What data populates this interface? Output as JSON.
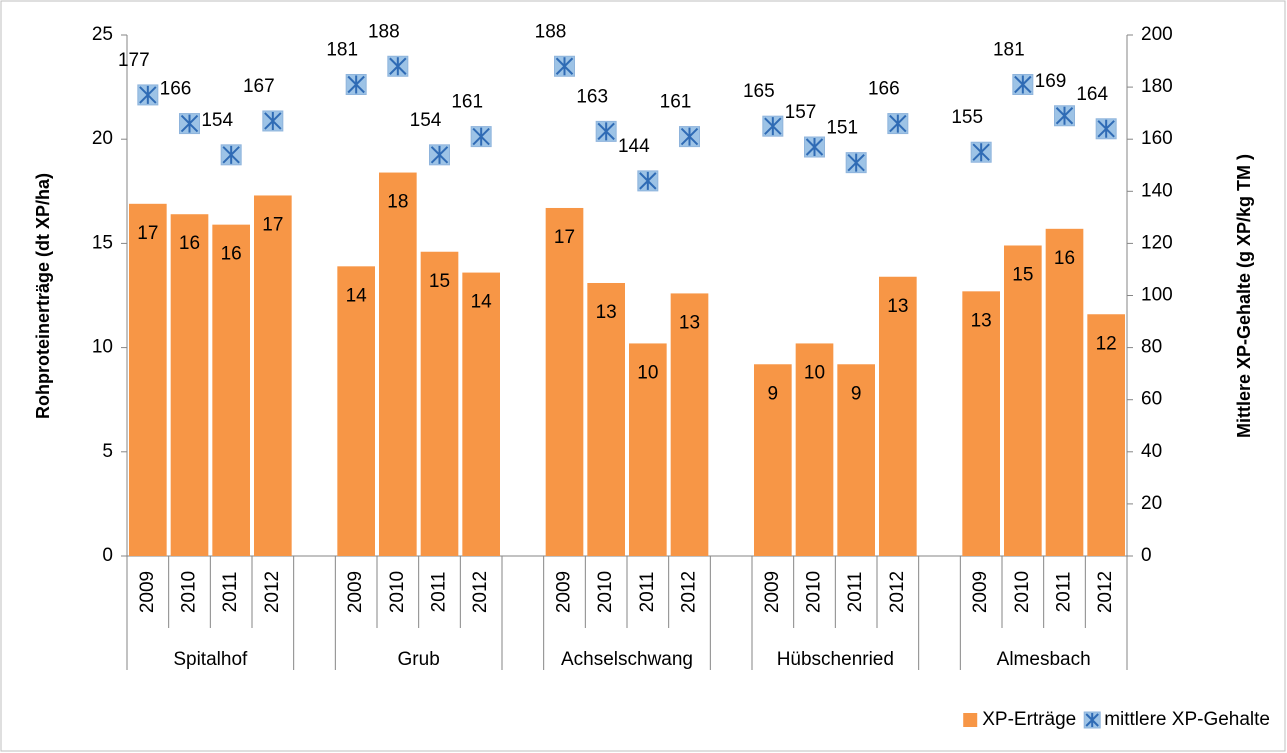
{
  "chart_data": {
    "type": "bar",
    "y_label": "Rohproteinerträge (dt XP/ha)",
    "y2_label": "Mittlere  XP-Gehalte (g XP/kg TM )",
    "groups": [
      "Spitalhof",
      "Grub",
      "Achselschwang",
      "Hübschenried",
      "Almesbach"
    ],
    "categories": [
      "2009",
      "2010",
      "2011",
      "2012",
      "2009",
      "2010",
      "2011",
      "2012",
      "2009",
      "2010",
      "2011",
      "2012",
      "2009",
      "2010",
      "2011",
      "2012",
      "2009",
      "2010",
      "2011",
      "2012"
    ],
    "series": [
      {
        "name": "XP-Erträge",
        "type": "bar",
        "color": "#f79646",
        "values": [
          16.9,
          16.4,
          15.9,
          17.3,
          13.9,
          18.4,
          14.6,
          13.6,
          16.7,
          13.1,
          10.2,
          12.6,
          9.2,
          10.2,
          9.2,
          13.4,
          12.7,
          14.9,
          15.7,
          11.6
        ],
        "value_labels": [
          "17",
          "16",
          "16",
          "17",
          "14",
          "18",
          "15",
          "14",
          "17",
          "13",
          "10",
          "13",
          "9",
          "10",
          "9",
          "13",
          "13",
          "15",
          "16",
          "12"
        ]
      },
      {
        "name": "mittlere XP-Gehalte",
        "type": "scatter",
        "axis": "y2",
        "color": "#9dc3e6",
        "values": [
          177,
          166,
          154,
          167,
          181,
          188,
          154,
          161,
          188,
          163,
          144,
          161,
          165,
          157,
          151,
          166,
          155,
          181,
          169,
          164
        ]
      }
    ],
    "ylim": [
      0,
      25
    ],
    "yticks": [
      0,
      5,
      10,
      15,
      20,
      25
    ],
    "y2lim": [
      0,
      200
    ],
    "y2ticks": [
      0,
      20,
      40,
      60,
      80,
      100,
      120,
      140,
      160,
      180,
      200
    ],
    "legend": "bottom-right"
  }
}
